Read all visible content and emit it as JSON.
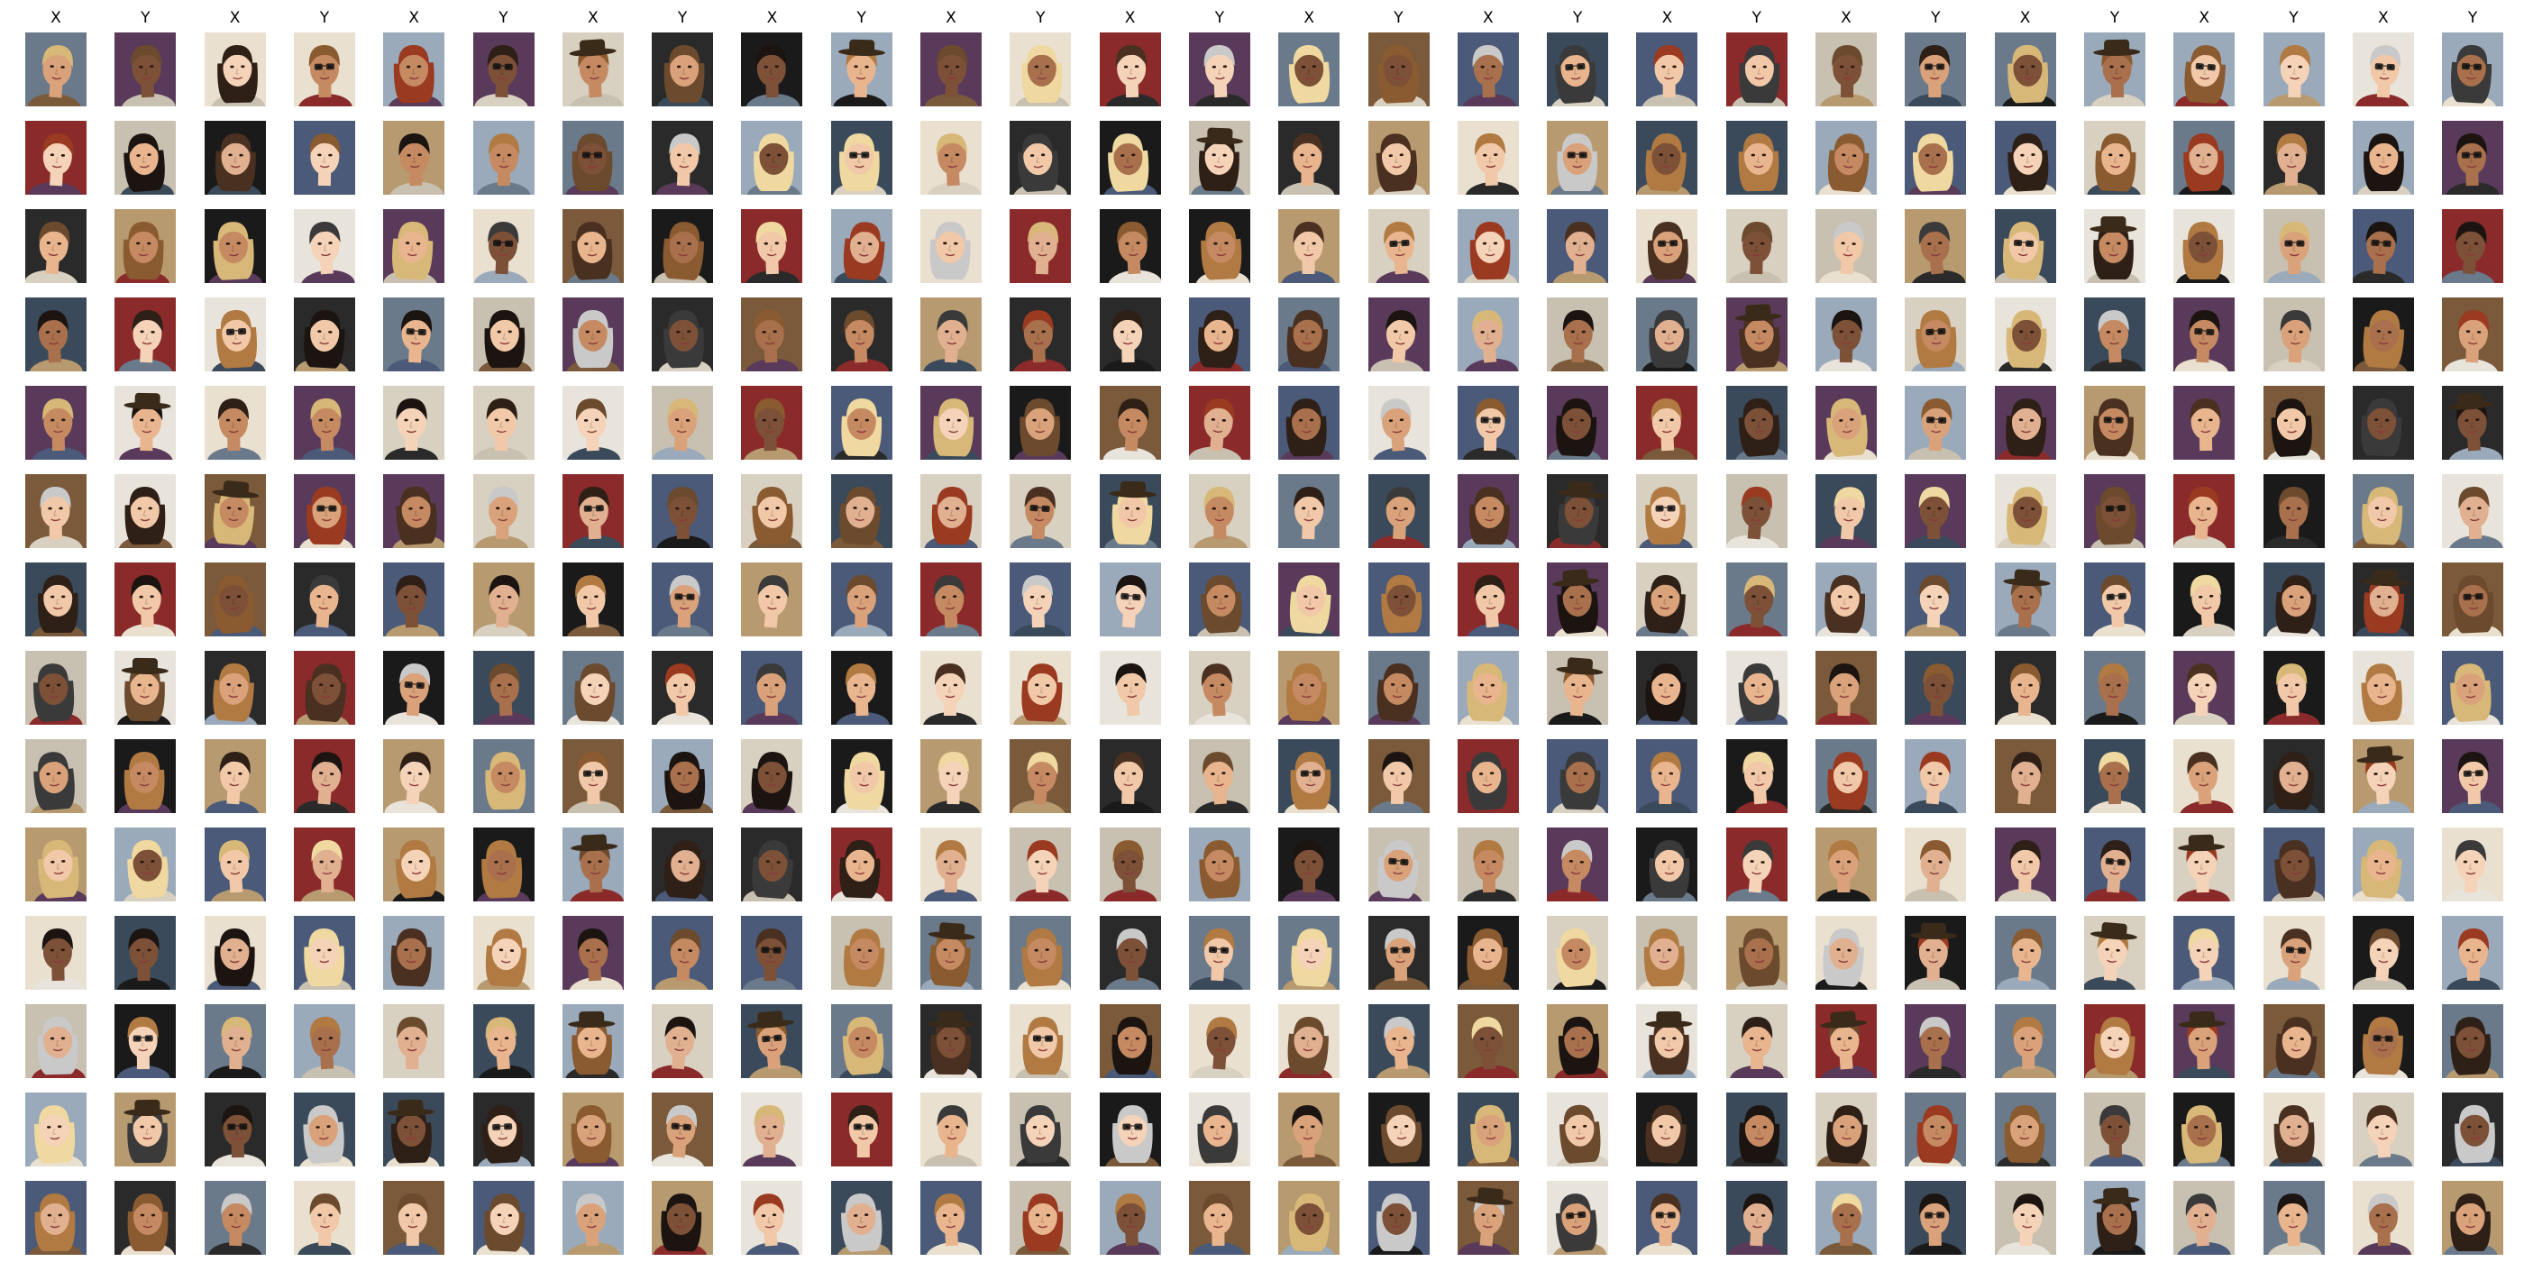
{
  "figure": {
    "column_labels": [
      "X",
      "Y",
      "X",
      "Y",
      "X",
      "Y",
      "X",
      "Y",
      "X",
      "Y",
      "X",
      "Y",
      "X",
      "Y",
      "X",
      "Y",
      "X",
      "Y",
      "X",
      "Y",
      "X",
      "Y",
      "X",
      "Y",
      "X",
      "Y",
      "X",
      "Y"
    ],
    "row_count": 14,
    "cell_content": "face-photo-icon",
    "palette": {
      "background": "#ffffff",
      "label_text": "#000000",
      "skin_tones": [
        "#f1c9a8",
        "#e8b58e",
        "#d9a27a",
        "#c58a62",
        "#a8704c",
        "#7d5038",
        "#f5d3b8",
        "#e0b090"
      ],
      "hair_tones": [
        "#1b1410",
        "#2e1f17",
        "#4a3020",
        "#6b4a2e",
        "#8a5a30",
        "#b07a42",
        "#d8b878",
        "#efd9a0",
        "#9a3a20",
        "#3a3a3a",
        "#c9c9c9"
      ],
      "backdrop_tones": [
        "#2a2a2a",
        "#4a5a78",
        "#7a5a3a",
        "#c8c0b0",
        "#8a2a2a",
        "#d8d0c0",
        "#3a4a5a",
        "#e8e4dc",
        "#1a1a1a",
        "#6a7a8a",
        "#b89a70",
        "#5a3a5a",
        "#eae0d0",
        "#9aaabb"
      ]
    }
  }
}
